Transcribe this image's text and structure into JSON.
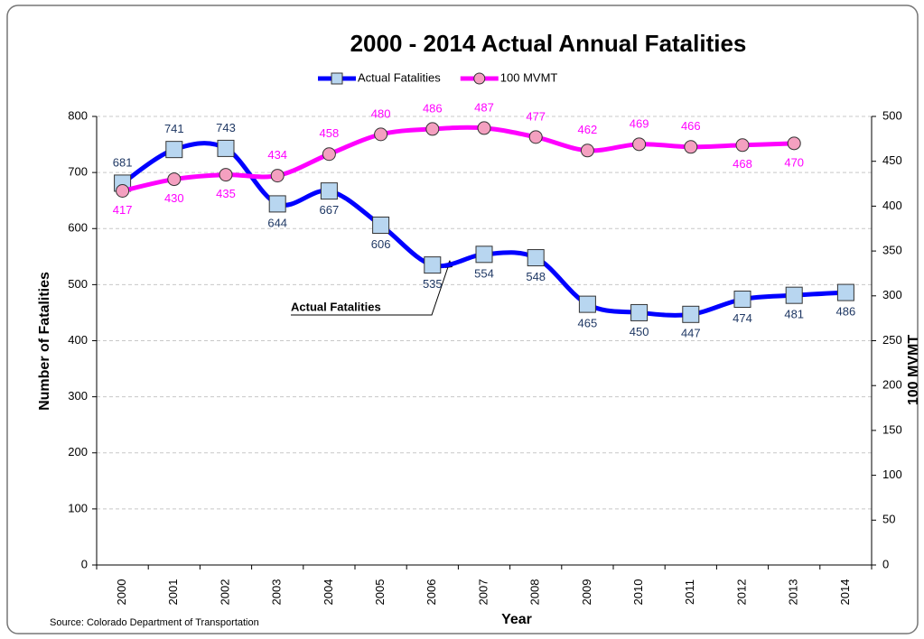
{
  "chart_data": {
    "type": "line",
    "title": "2000 - 2014 Actual Annual Fatalities",
    "x_label": "Year",
    "y_label": "Number of Fatalities",
    "y2_label": "100 MVMT",
    "source": "Source: Colorado Department of Transportation",
    "annotation": "Actual Fatalities",
    "categories": [
      "2000",
      "2001",
      "2002",
      "2003",
      "2004",
      "2005",
      "2006",
      "2007",
      "2008",
      "2009",
      "2010",
      "2011",
      "2012",
      "2013",
      "2014"
    ],
    "series": [
      {
        "name": "Actual Fatalities",
        "color": "#0000ff",
        "marker": "square",
        "marker_color": "#b8d6f0",
        "label_color": "#1f3864",
        "values": [
          681,
          741,
          743,
          644,
          667,
          606,
          535,
          554,
          548,
          465,
          450,
          447,
          474,
          481,
          486
        ]
      },
      {
        "name": "100 MVMT",
        "color": "#ff00ff",
        "marker": "circle",
        "marker_color": "#f4a0c0",
        "label_color": "#ff00ff",
        "axis": "y2",
        "values": [
          417,
          430,
          435,
          434,
          458,
          480,
          486,
          487,
          477,
          462,
          469,
          466,
          468,
          470,
          null
        ]
      }
    ],
    "ylim": [
      0,
      800
    ],
    "yticks": [
      0,
      100,
      200,
      300,
      400,
      500,
      600,
      700,
      800
    ],
    "y2lim": [
      0,
      500
    ],
    "y2ticks": [
      0,
      50,
      100,
      150,
      200,
      250,
      300,
      350,
      400,
      450,
      500
    ],
    "grid": true
  }
}
